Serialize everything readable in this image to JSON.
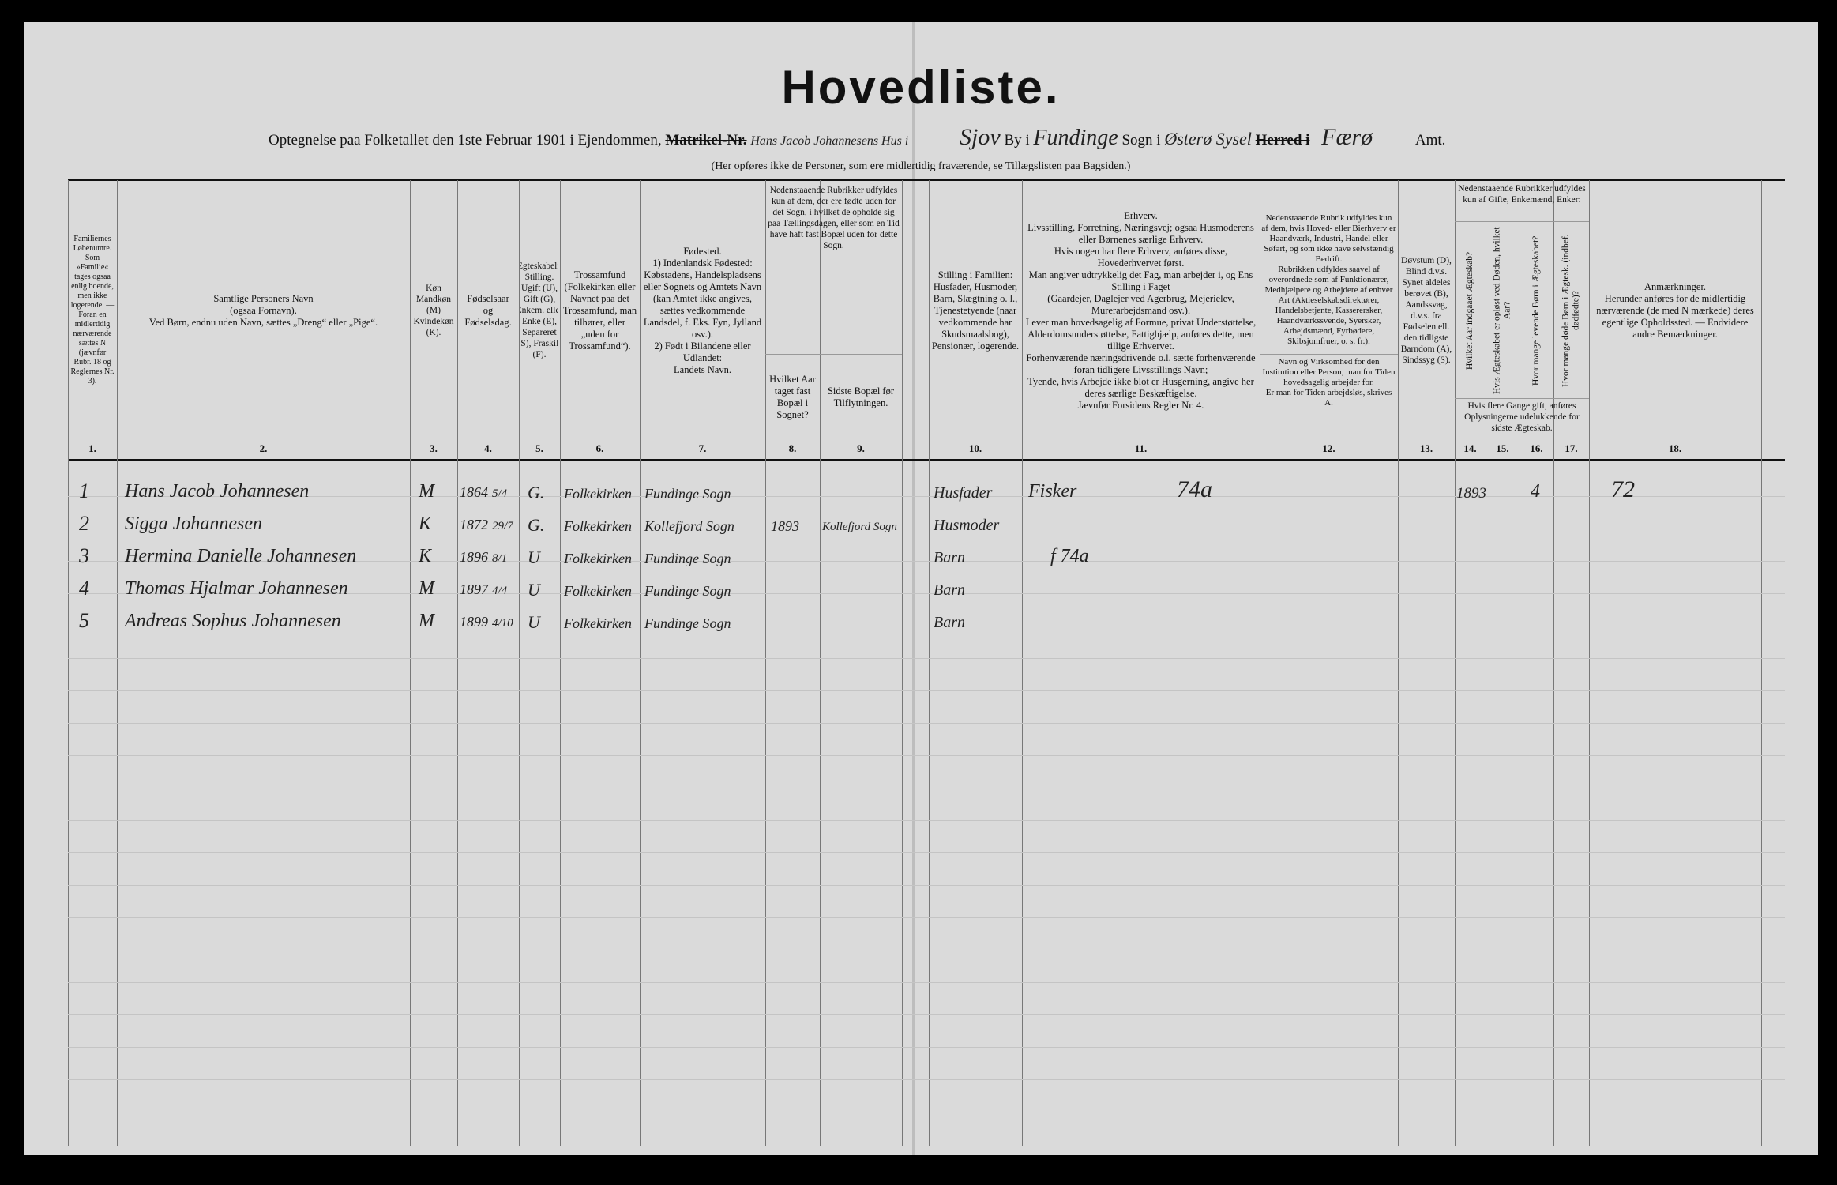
{
  "title": "Hovedliste.",
  "header_line": {
    "prefix": "Optegnelse paa Folketallet den 1ste Februar 1901 i Ejendommen,",
    "struck": "Matrikel-Nr.",
    "property": "Hans Jacob Johannesens Hus i",
    "town_hw": "Sjov",
    "by_label": "By i",
    "sogn_hw": "Fundinge",
    "sogn_label": "Sogn i",
    "herred_hw": "Østerø Sysel",
    "herred_struck": "Herred i",
    "amt_hw": "Færø",
    "amt_label": "Amt."
  },
  "note": "(Her opføres ikke de Personer, som ere midlertidig fraværende, se Tillægslisten paa Bagsiden.)",
  "columns": [
    {
      "num": "1.",
      "text": "Familiernes Løbenumre.\nSom »Familie« tages ogsaa enlig boende, men ikke logerende. — Foran en midlertidig nærværende sættes N (jævnfør Rubr. 18 og Reglernes Nr. 3)."
    },
    {
      "num": "2.",
      "text": "Samtlige Personers Navn\n(ogsaa Fornavn).\nVed Børn, endnu uden Navn, sættes „Dreng“ eller „Pige“."
    },
    {
      "num": "3.",
      "text": "Køn\nMandkøn (M)\nKvindekøn (K)."
    },
    {
      "num": "4.",
      "text": "Fødselsaar\nog\nFødselsdag."
    },
    {
      "num": "5.",
      "text": "Ægteskabelig Stilling.\nUgift (U), Gift (G), Enkem. eller Enke (E), Separeret (S), Fraskilt (F)."
    },
    {
      "num": "6.",
      "text": "Trossamfund\n(Folkekirken eller Navnet paa det Trossamfund, man tilhører, eller „uden for Trossamfund“)."
    },
    {
      "num": "7.",
      "text": "Fødested.\n1) Indenlandsk Fødested:\nKøbstadens, Handelspladsens eller Sognets og Amtets Navn (kan Amtet ikke angives, sættes vedkommende Landsdel, f. Eks. Fyn, Jylland osv.).\n2) Født i Bilandene eller Udlandet:\nLandets Navn."
    },
    {
      "num": "8.",
      "text": "Hvilket Aar taget fast Bopæl i Sognet?"
    },
    {
      "num": "9.",
      "text": "Sidste Bopæl før Tilflytningen."
    },
    {
      "num": "10.",
      "text": "Stilling i Familien:\nHusfader, Husmoder, Barn, Slægtning o. l., Tjenestetyende (naar vedkommende har Skudsmaalsbog), Pensionær, logerende."
    },
    {
      "num": "11.",
      "text": "Erhverv.\nLivsstilling, Forretning, Næringsvej; ogsaa Husmoderens eller Børnenes særlige Erhverv.\nHvis nogen har flere Erhverv, anføres disse, Hovederhvervet først.\nMan angiver udtrykkelig det Fag, man arbejder i, og Ens Stilling i Faget\n(Gaardejer, Daglejer ved Agerbrug, Mejerielev, Murerarbejdsmand osv.).\nLever man hovedsagelig af Formue, privat Understøttelse, Alderdomsunderstøttelse, Fattighjælp, anføres dette, men tillige Erhvervet.\nForhenværende næringsdrivende o.l. sætte forhenværende foran tidligere Livsstillings Navn;\nTyende, hvis Arbejde ikke blot er Husgerning, angive her deres særlige Beskæftigelse.\nJævnfør Forsidens Regler Nr. 4."
    },
    {
      "num": "12.",
      "text": "Nedenstaaende Rubrik udfyldes kun af dem, hvis Hoved- eller Bierhverv er Haandværk, Industri, Handel eller Søfart, og som ikke have selvstændig Bedrift.\nRubrikken udfyldes saavel af overordnede som af Funktionærer, Medhjælpere og Arbejdere af enhver Art (Aktieselskabsdirektører, Handelsbetjente, Kasserersker, Haandværkssvende, Syersker, Arbejdsmænd, Fyrbødere, Skibsjomfruer, o. s. fr.).\n\nNavn og Virksomhed for den Institution eller Person, man for Tiden hovedsagelig arbejder for.\nEr man for Tiden arbejdsløs, skrives A."
    },
    {
      "num": "13.",
      "text": "Døvstum (D), Blind d.v.s. Synet aldeles berøvet (B), Aandssvag, d.v.s. fra Fødselen ell. den tidligste Barndom (A), Sindssyg (S)."
    },
    {
      "num": "14.",
      "text": "Hvilket Aar indgaaet Ægteskab?"
    },
    {
      "num": "15.",
      "text": "Hvis Ægteskabet er opløst ved Døden, hvilket Aar?"
    },
    {
      "num": "16.",
      "text": "Hvor mange levende Børn i Ægteskabet?"
    },
    {
      "num": "17.",
      "text": "Hvor mange døde Børn i Ægtesk. (indbef. dødfødte)?"
    },
    {
      "num": "18.",
      "text": "Anmærkninger.\nHerunder anføres for de midlertidig nærværende (de med N mærkede) deres egentlige Opholdssted. — Endvidere andre Bemærkninger."
    }
  ],
  "group_14_17": {
    "top": "Nedenstaaende Rubrikker udfyldes kun af Gifte, Enkemænd, Enker:",
    "bottom": "Hvis flere Gange gift, anføres Oplysningerne udelukkende for sidste Ægteskab."
  },
  "group_8_9": "Nedenstaaende Rubrikker udfyldes kun af dem, der ere fødte uden for det Sogn, i hvilket de opholde sig paa Tællingsdagen, eller som en Tid have haft fast Bopæl uden for dette Sogn.",
  "rows": [
    {
      "no": "1",
      "name": "Hans Jacob Johannesen",
      "sex": "M",
      "year": "1864",
      "day": "5/4",
      "civil": "G.",
      "faith": "Folkekirken",
      "birthplace": "Fundinge Sogn",
      "arrived": "",
      "last_home": "",
      "position": "Husfader",
      "occupation": "Fisker",
      "code": "74a",
      "married": "1893",
      "children": "4",
      "remark": "72"
    },
    {
      "no": "2",
      "name": "Sigga Johannesen",
      "sex": "K",
      "year": "1872",
      "day": "29/7",
      "civil": "G.",
      "faith": "Folkekirken",
      "birthplace": "Kollefjord Sogn",
      "arrived": "1893",
      "last_home": "Kollefjord Sogn",
      "position": "Husmoder",
      "occupation": "",
      "code": "",
      "married": "",
      "children": "",
      "remark": ""
    },
    {
      "no": "3",
      "name": "Hermina Danielle Johannesen",
      "sex": "K",
      "year": "1896",
      "day": "8/1",
      "civil": "U",
      "faith": "Folkekirken",
      "birthplace": "Fundinge Sogn",
      "arrived": "",
      "last_home": "",
      "position": "Barn",
      "occupation": "f 74a",
      "code": "",
      "married": "",
      "children": "",
      "remark": ""
    },
    {
      "no": "4",
      "name": "Thomas Hjalmar Johannesen",
      "sex": "M",
      "year": "1897",
      "day": "4/4",
      "civil": "U",
      "faith": "Folkekirken",
      "birthplace": "Fundinge Sogn",
      "arrived": "",
      "last_home": "",
      "position": "Barn",
      "occupation": "",
      "code": "",
      "married": "",
      "children": "",
      "remark": ""
    },
    {
      "no": "5",
      "name": "Andreas Sophus Johannesen",
      "sex": "M",
      "year": "1899",
      "day": "4/10",
      "civil": "U",
      "faith": "Folkekirken",
      "birthplace": "Fundinge Sogn",
      "arrived": "",
      "last_home": "",
      "position": "Barn",
      "occupation": "",
      "code": "",
      "married": "",
      "children": "",
      "remark": ""
    }
  ]
}
